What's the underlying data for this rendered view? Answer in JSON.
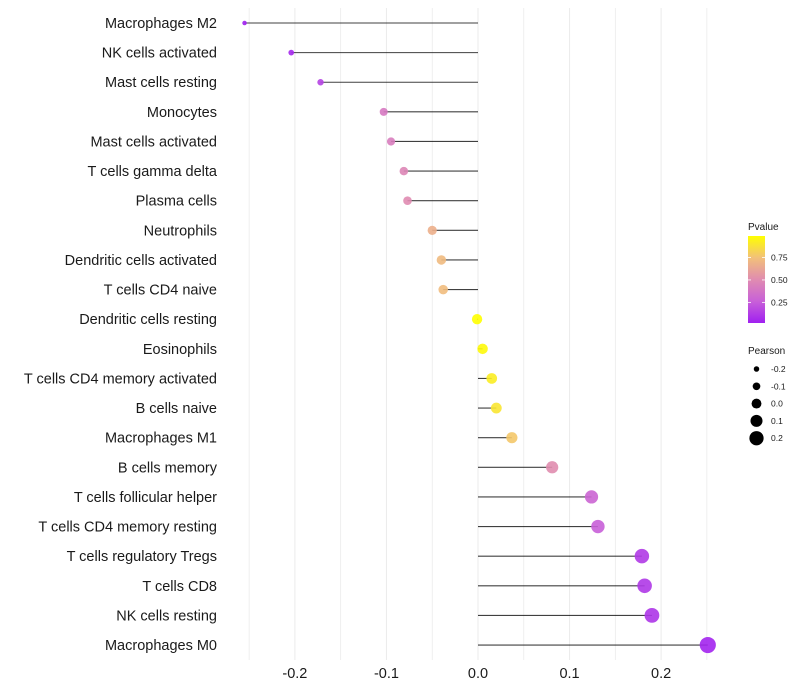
{
  "chart_data": {
    "type": "lollipop",
    "title": "",
    "xlabel": "",
    "ylabel": "",
    "xlim": [
      -0.265,
      0.262
    ],
    "x_ticks": [
      -0.2,
      -0.1,
      0.0,
      0.1,
      0.2
    ],
    "x_tick_labels": [
      "-0.2",
      "-0.1",
      "0.0",
      "0.1",
      "0.2"
    ],
    "minor_grid": [
      -0.25,
      -0.15,
      -0.05,
      0.05,
      0.15,
      0.25
    ],
    "grid": true,
    "baseline": 0.0,
    "categories": [
      "Macrophages M2",
      "NK cells activated",
      "Mast cells resting",
      "Monocytes",
      "Mast cells activated",
      "T cells gamma delta",
      "Plasma cells",
      "Neutrophils",
      "Dendritic cells activated",
      "T cells CD4 naive",
      "Dendritic cells resting",
      "Eosinophils",
      "T cells CD4 memory activated",
      "B cells naive",
      "Macrophages M1",
      "B cells memory",
      "T cells follicular helper",
      "T cells CD4 memory resting",
      "T cells regulatory  Tregs ",
      "T cells CD8",
      "NK cells resting",
      "Macrophages M0"
    ],
    "series": [
      {
        "name": "Pearson",
        "values": [
          -0.255,
          -0.204,
          -0.172,
          -0.103,
          -0.095,
          -0.081,
          -0.077,
          -0.05,
          -0.04,
          -0.038,
          -0.001,
          0.005,
          0.015,
          0.02,
          0.037,
          0.081,
          0.124,
          0.131,
          0.179,
          0.182,
          0.19,
          0.251
        ]
      },
      {
        "name": "Pvalue",
        "values": [
          0.02,
          0.05,
          0.15,
          0.4,
          0.42,
          0.47,
          0.5,
          0.67,
          0.72,
          0.73,
          0.99,
          0.97,
          0.92,
          0.89,
          0.78,
          0.51,
          0.29,
          0.26,
          0.12,
          0.11,
          0.1,
          0.04
        ]
      }
    ],
    "color_legend": {
      "title": "Pvalue",
      "ticks": [
        0.25,
        0.5,
        0.75
      ],
      "tick_labels": [
        "0.25",
        "0.50",
        "0.75"
      ],
      "range": [
        0.02,
        0.99
      ],
      "colors": {
        "low": "#a020f0",
        "mid": "#e08cb0",
        "midhigh": "#f2c07a",
        "high": "#ffff00"
      },
      "placement": "right"
    },
    "size_legend": {
      "title": "Pearson",
      "values": [
        -0.2,
        -0.1,
        0.0,
        0.1,
        0.2
      ],
      "labels": [
        "-0.2",
        "-0.1",
        "0.0",
        "0.1",
        "0.2"
      ],
      "placement": "right"
    },
    "segment_color": "#000000",
    "gridline_color": "#ebebeb"
  }
}
